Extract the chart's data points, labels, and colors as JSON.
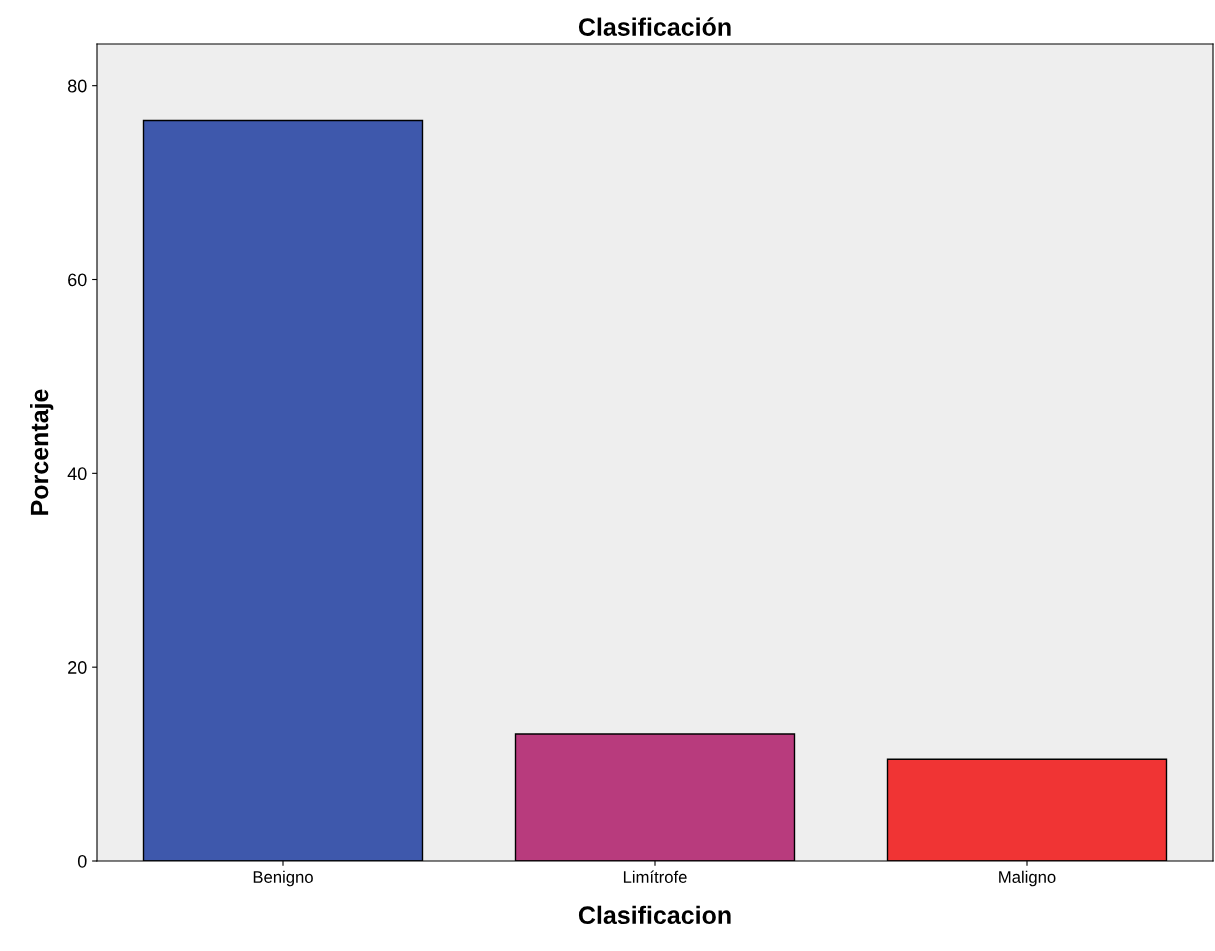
{
  "chart_data": {
    "type": "bar",
    "title": "Clasificación",
    "xlabel": "Clasificacion",
    "ylabel": "Porcentaje",
    "categories": [
      "Benigno",
      "Limítrofe",
      "Maligno"
    ],
    "values": [
      76.4,
      13.1,
      10.5
    ],
    "colors": [
      "#3e58ac",
      "#b83b7d",
      "#f03434"
    ],
    "ylim": [
      0,
      84.3
    ],
    "yticks": [
      0,
      20,
      40,
      60,
      80
    ],
    "grid": false,
    "legend": false
  }
}
